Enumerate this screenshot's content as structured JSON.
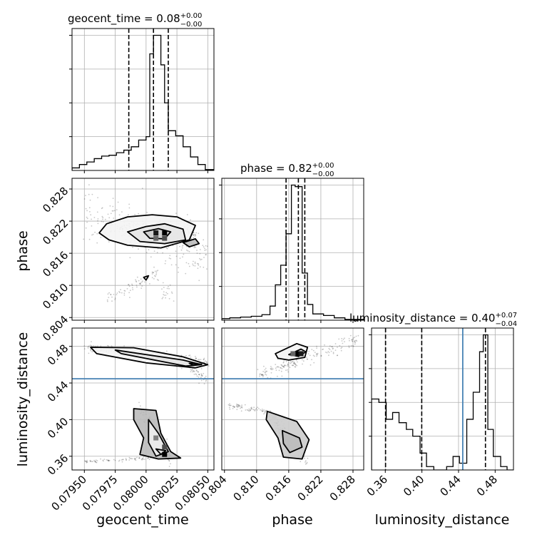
{
  "chart_data": {
    "type": "corner",
    "parameters": [
      "geocent_time",
      "phase",
      "luminosity_distance"
    ],
    "truth_color": "#4682b4",
    "grid": true,
    "titles": [
      {
        "param": "geocent_time",
        "text": "geocent_time = 0.08",
        "plus": "+0.00",
        "minus": "−0.00"
      },
      {
        "param": "phase",
        "text": "phase = 0.82",
        "plus": "+0.00",
        "minus": "−0.00"
      },
      {
        "param": "luminosity_distance",
        "text": "luminosity_distance = 0.40",
        "plus": "+0.07",
        "minus": "−0.04"
      }
    ],
    "axes": {
      "geocent_time": {
        "label": "geocent_time",
        "range": [
          0.0794,
          0.08055
        ],
        "ticks": [
          0.0795,
          0.07975,
          0.08,
          0.08025,
          0.0805
        ],
        "tick_labels": [
          "0.07950",
          "0.07975",
          "0.08000",
          "0.08025",
          "0.08050"
        ],
        "quantiles": [
          0.07986,
          0.08006,
          0.08018
        ],
        "hist_edges": [
          0.0794,
          0.07946,
          0.07952,
          0.07958,
          0.07964,
          0.0797,
          0.07976,
          0.07982,
          0.07988,
          0.07994,
          0.08,
          0.08003,
          0.08006,
          0.08009,
          0.08012,
          0.08015,
          0.08018,
          0.08024,
          0.0803,
          0.08036,
          0.08042,
          0.08048,
          0.08055
        ],
        "hist_counts": [
          3,
          7,
          10,
          14,
          17,
          18,
          21,
          24,
          28,
          36,
          40,
          138,
          160,
          160,
          125,
          80,
          47,
          41,
          28,
          16,
          7,
          1
        ]
      },
      "phase": {
        "label": "phase",
        "range": [
          0.8035,
          0.83
        ],
        "ticks": [
          0.804,
          0.81,
          0.816,
          0.822,
          0.828
        ],
        "tick_labels": [
          "0.804",
          "0.810",
          "0.816",
          "0.822",
          "0.828"
        ],
        "quantiles": [
          0.8155,
          0.8178,
          0.819
        ],
        "hist_edges": [
          0.8035,
          0.805,
          0.807,
          0.809,
          0.811,
          0.8125,
          0.8135,
          0.8145,
          0.8155,
          0.8165,
          0.8172,
          0.8185,
          0.8195,
          0.8205,
          0.8225,
          0.8245,
          0.8265,
          0.8285,
          0.83
        ],
        "hist_counts": [
          2,
          3,
          4,
          5,
          7,
          18,
          45,
          70,
          110,
          172,
          170,
          60,
          20,
          8,
          6,
          3,
          1,
          1
        ]
      },
      "luminosity_distance": {
        "label": "luminosity_distance",
        "range": [
          0.345,
          0.5
        ],
        "ticks": [
          0.36,
          0.4,
          0.44,
          0.48
        ],
        "tick_labels": [
          "0.36",
          "0.40",
          "0.44",
          "0.48"
        ],
        "quantiles": [
          0.3603,
          0.3998,
          0.4694
        ],
        "truth": 0.4446,
        "hist_edges": [
          0.345,
          0.353,
          0.361,
          0.368,
          0.375,
          0.383,
          0.39,
          0.398,
          0.405,
          0.413,
          0.42,
          0.427,
          0.434,
          0.441,
          0.449,
          0.456,
          0.463,
          0.467,
          0.472,
          0.478,
          0.486,
          0.493,
          0.5
        ],
        "hist_counts": [
          21,
          20,
          15,
          17,
          14,
          12,
          10,
          5,
          1,
          0,
          0,
          1,
          4,
          2,
          15,
          23,
          35,
          40,
          12,
          4,
          1,
          0
        ]
      }
    },
    "contours": {
      "phase_vs_geocent_time": [
        [
          [
            0.07968,
            0.8215
          ],
          [
            0.07985,
            0.8228
          ],
          [
            0.08005,
            0.8232
          ],
          [
            0.08025,
            0.8228
          ],
          [
            0.0804,
            0.8212
          ],
          [
            0.08035,
            0.8185
          ],
          [
            0.08012,
            0.817
          ],
          [
            0.07985,
            0.8175
          ],
          [
            0.0797,
            0.8185
          ],
          [
            0.07962,
            0.8198
          ]
        ],
        [
          [
            0.07985,
            0.82
          ],
          [
            0.08,
            0.821
          ],
          [
            0.08015,
            0.8215
          ],
          [
            0.0803,
            0.8205
          ],
          [
            0.08032,
            0.8185
          ],
          [
            0.08015,
            0.8178
          ],
          [
            0.07995,
            0.8182
          ]
        ],
        [
          [
            0.07998,
            0.82
          ],
          [
            0.0801,
            0.8206
          ],
          [
            0.0802,
            0.82
          ],
          [
            0.08015,
            0.8187
          ],
          [
            0.08003,
            0.8188
          ]
        ],
        [
          [
            0.0803,
            0.818
          ],
          [
            0.0804,
            0.8187
          ],
          [
            0.08043,
            0.8178
          ],
          [
            0.08035,
            0.8172
          ]
        ],
        [
          [
            0.07998,
            0.8115
          ],
          [
            0.08002,
            0.8118
          ],
          [
            0.08,
            0.811
          ]
        ]
      ],
      "luminosity_distance_vs_geocent_time": [
        [
          [
            0.07955,
            0.479
          ],
          [
            0.0799,
            0.4785
          ],
          [
            0.0803,
            0.4685
          ],
          [
            0.0805,
            0.46
          ],
          [
            0.0804,
            0.4565
          ],
          [
            0.08,
            0.462
          ],
          [
            0.0796,
            0.472
          ]
        ],
        [
          [
            0.07975,
            0.476
          ],
          [
            0.0803,
            0.465
          ],
          [
            0.08045,
            0.46
          ],
          [
            0.08032,
            0.4585
          ],
          [
            0.0798,
            0.472
          ]
        ],
        [
          [
            0.08035,
            0.4615
          ],
          [
            0.08045,
            0.4605
          ],
          [
            0.08038,
            0.4595
          ]
        ],
        [
          [
            0.0799,
            0.412
          ],
          [
            0.08008,
            0.41
          ],
          [
            0.08012,
            0.385
          ],
          [
            0.0802,
            0.365
          ],
          [
            0.08028,
            0.358
          ],
          [
            0.0801,
            0.357
          ],
          [
            0.07995,
            0.362
          ],
          [
            0.07998,
            0.38
          ],
          [
            0.0799,
            0.4
          ]
        ],
        [
          [
            0.08002,
            0.4
          ],
          [
            0.0801,
            0.385
          ],
          [
            0.08018,
            0.365
          ],
          [
            0.08008,
            0.36
          ],
          [
            0.08002,
            0.375
          ]
        ],
        [
          [
            0.08008,
            0.368
          ],
          [
            0.08016,
            0.366
          ],
          [
            0.08012,
            0.362
          ]
        ]
      ],
      "luminosity_distance_vs_phase": [
        [
          [
            0.8135,
            0.472
          ],
          [
            0.8175,
            0.483
          ],
          [
            0.8195,
            0.479
          ],
          [
            0.819,
            0.468
          ],
          [
            0.816,
            0.465
          ],
          [
            0.814,
            0.467
          ]
        ],
        [
          [
            0.816,
            0.471
          ],
          [
            0.8183,
            0.477
          ],
          [
            0.8192,
            0.474
          ],
          [
            0.8178,
            0.469
          ]
        ],
        [
          [
            0.812,
            0.409
          ],
          [
            0.8175,
            0.398
          ],
          [
            0.8198,
            0.378
          ],
          [
            0.8185,
            0.357
          ],
          [
            0.815,
            0.359
          ],
          [
            0.814,
            0.38
          ],
          [
            0.8118,
            0.4
          ]
        ],
        [
          [
            0.8148,
            0.388
          ],
          [
            0.818,
            0.38
          ],
          [
            0.8185,
            0.37
          ],
          [
            0.8162,
            0.364
          ],
          [
            0.815,
            0.374
          ]
        ]
      ]
    },
    "samples": {
      "phase_vs_geocent_time": [
        {
          "x0": 0.0795,
          "x1": 0.0805,
          "y0": 0.824,
          "y1": 0.815,
          "spread": 0.0022,
          "n": 260
        },
        {
          "x0": 0.0798,
          "x1": 0.0804,
          "y0": 0.8205,
          "y1": 0.8195,
          "spread": 0.0012,
          "n": 220
        },
        {
          "x0": 0.07968,
          "x1": 0.0801,
          "y0": 0.8075,
          "y1": 0.8125,
          "spread": 0.0007,
          "n": 70
        },
        {
          "x0": 0.08012,
          "x1": 0.08022,
          "y0": 0.8085,
          "y1": 0.8095,
          "spread": 0.0008,
          "n": 20
        }
      ],
      "luminosity_distance_vs_geocent_time": [
        {
          "x0": 0.0795,
          "x1": 0.0805,
          "y0": 0.479,
          "y1": 0.462,
          "spread": 0.003,
          "n": 230
        },
        {
          "x0": 0.0803,
          "x1": 0.0805,
          "y0": 0.462,
          "y1": 0.442,
          "spread": 0.003,
          "n": 60
        },
        {
          "x0": 0.07995,
          "x1": 0.0802,
          "y0": 0.412,
          "y1": 0.357,
          "spread": 0.004,
          "n": 160
        },
        {
          "x0": 0.0795,
          "x1": 0.08005,
          "y0": 0.354,
          "y1": 0.358,
          "spread": 0.001,
          "n": 70
        }
      ],
      "luminosity_distance_vs_phase": [
        {
          "x0": 0.8105,
          "x1": 0.829,
          "y0": 0.448,
          "y1": 0.488,
          "spread": 0.004,
          "n": 190
        },
        {
          "x0": 0.8045,
          "x1": 0.8125,
          "y0": 0.416,
          "y1": 0.408,
          "spread": 0.0015,
          "n": 70
        },
        {
          "x0": 0.8125,
          "x1": 0.8195,
          "y0": 0.405,
          "y1": 0.358,
          "spread": 0.005,
          "n": 150
        }
      ]
    },
    "density_cells": [
      {
        "panel": "phase_vs_geocent_time",
        "x": 0.08008,
        "y": 0.8198,
        "shade": 0.9
      },
      {
        "panel": "phase_vs_geocent_time",
        "x": 0.08015,
        "y": 0.8198,
        "shade": 1.0
      },
      {
        "panel": "phase_vs_geocent_time",
        "x": 0.08008,
        "y": 0.8188,
        "shade": 0.6
      },
      {
        "panel": "phase_vs_geocent_time",
        "x": 0.08015,
        "y": 0.8188,
        "shade": 0.7
      },
      {
        "panel": "luminosity_distance_vs_geocent_time",
        "x": 0.08008,
        "y": 0.38,
        "shade": 0.5
      },
      {
        "panel": "luminosity_distance_vs_geocent_time",
        "x": 0.08015,
        "y": 0.37,
        "shade": 0.7
      },
      {
        "panel": "luminosity_distance_vs_geocent_time",
        "x": 0.08015,
        "y": 0.362,
        "shade": 1.0
      },
      {
        "panel": "luminosity_distance_vs_phase",
        "x": 0.8175,
        "y": 0.472,
        "shade": 1.0
      },
      {
        "panel": "luminosity_distance_vs_phase",
        "x": 0.8183,
        "y": 0.472,
        "shade": 0.9
      },
      {
        "panel": "luminosity_distance_vs_phase",
        "x": 0.8168,
        "y": 0.472,
        "shade": 0.6
      }
    ]
  }
}
